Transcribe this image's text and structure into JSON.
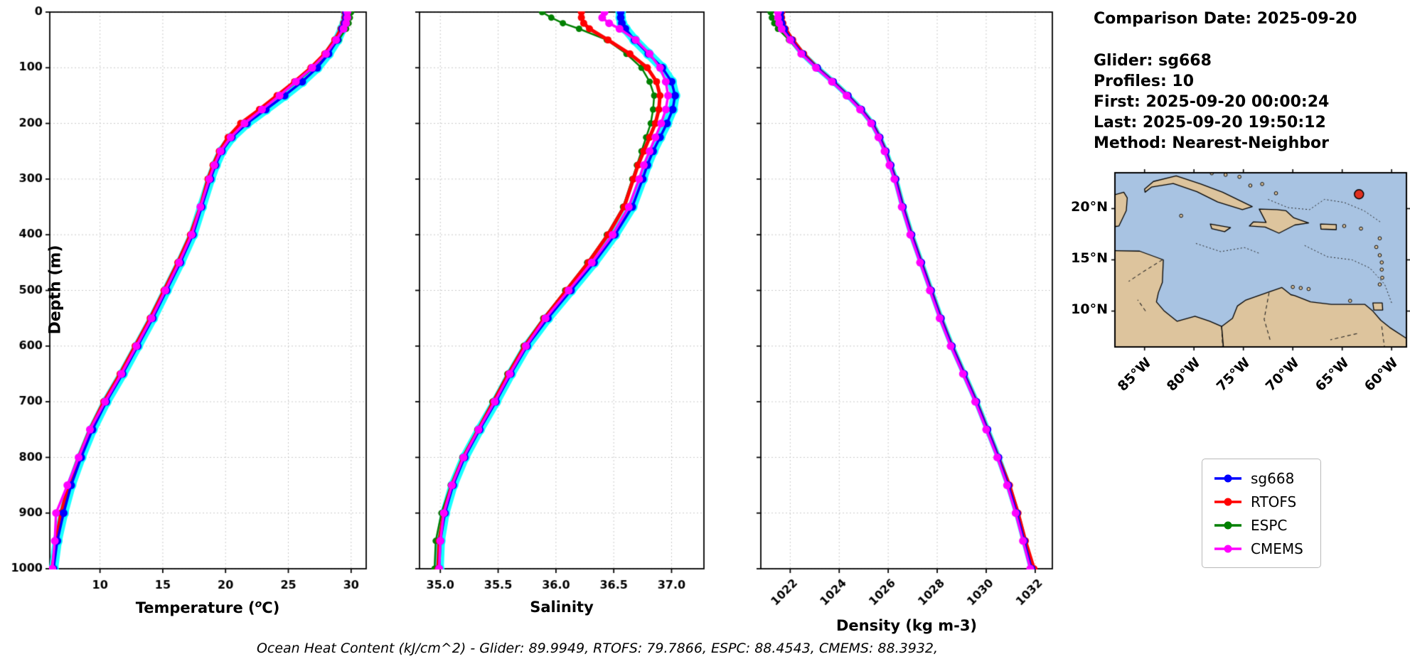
{
  "info": {
    "comparison_date": "Comparison Date: 2025-09-20",
    "glider": "Glider: sg668",
    "profiles": "Profiles: 10",
    "first": "First: 2025-09-20 00:00:24",
    "last": "Last: 2025-09-20 19:50:12",
    "method": "Method: Nearest-Neighbor"
  },
  "axes": {
    "ylabel": "Depth (m)",
    "temperature_label_prefix": "Temperature (",
    "temperature_label_sup": "o",
    "temperature_label_suffix": "C)",
    "salinity_label": "Salinity",
    "density_label": "Density (kg m-3)"
  },
  "legend": {
    "items": [
      {
        "label": "sg668",
        "color": "#0000ff"
      },
      {
        "label": "RTOFS",
        "color": "#ff0000"
      },
      {
        "label": "ESPC",
        "color": "#008000"
      },
      {
        "label": "CMEMS",
        "color": "#ff00ff"
      }
    ]
  },
  "footer": {
    "text": "Ocean Heat Content (kJ/cm^2) - Glider: 89.9949,  RTOFS: 79.7866,  ESPC: 88.4543,  CMEMS: 88.3932,"
  },
  "map": {
    "ocean_color": "#a8c3e2",
    "land_color": "#ddc49d",
    "marker_color": "#e03020",
    "lat_ticks": [
      {
        "label": "20°N"
      },
      {
        "label": "15°N"
      },
      {
        "label": "10°N"
      }
    ],
    "lon_ticks": [
      {
        "label": "85°W"
      },
      {
        "label": "80°W"
      },
      {
        "label": "75°W"
      },
      {
        "label": "70°W"
      },
      {
        "label": "65°W"
      },
      {
        "label": "60°W"
      }
    ],
    "marker_lonlat": [
      -63.3,
      21.4
    ],
    "extent": {
      "lon": [
        -88,
        -58.5
      ],
      "lat": [
        6.5,
        23.5
      ]
    }
  },
  "chart_data": [
    {
      "type": "line",
      "id": "temperature",
      "title": "",
      "xlabel": "Temperature (°C)",
      "ylabel": "Depth (m)",
      "xlim": [
        6,
        31.2
      ],
      "ylim": [
        1000,
        0
      ],
      "grid": "dashed",
      "legend_position": "outside-right",
      "xticks": [
        10,
        15,
        20,
        25,
        30
      ],
      "xtick_labels": [
        "10",
        "15",
        "20",
        "25",
        "30"
      ],
      "xtick_rotation": 0,
      "yticks": [
        0,
        100,
        200,
        300,
        400,
        500,
        600,
        700,
        800,
        900,
        1000
      ],
      "ytick_labels": [
        "0",
        "100",
        "200",
        "300",
        "400",
        "500",
        "600",
        "700",
        "800",
        "900",
        "1000"
      ],
      "show_ytick_labels": true,
      "depths": [
        0,
        10,
        20,
        30,
        50,
        75,
        100,
        125,
        150,
        175,
        200,
        225,
        250,
        275,
        300,
        350,
        400,
        450,
        500,
        550,
        600,
        650,
        700,
        750,
        800,
        850,
        900,
        950,
        1000
      ],
      "glider_spread": {
        "series": "sg668",
        "color": "#00ffff",
        "line_width": 13,
        "dot_radius": 7.5
      },
      "draw_order": [
        "ESPC",
        "RTOFS",
        "sg668",
        "CMEMS"
      ],
      "series": [
        {
          "name": "sg668",
          "color": "#0000ff",
          "line_width": 3.5,
          "marker_radius": 5.5,
          "values": [
            29.6,
            29.6,
            29.5,
            29.3,
            28.9,
            28.2,
            27.3,
            26.1,
            24.7,
            23.2,
            21.7,
            20.5,
            19.7,
            19.2,
            18.8,
            18.1,
            17.4,
            16.4,
            15.3,
            14.2,
            13.0,
            11.8,
            10.5,
            9.4,
            8.5,
            7.7,
            7.1,
            6.6,
            6.3
          ]
        },
        {
          "name": "RTOFS",
          "color": "#ff0000",
          "line_width": 5,
          "marker_radius": 5,
          "values": [
            29.5,
            29.5,
            29.4,
            29.2,
            28.7,
            27.9,
            26.8,
            25.5,
            24.1,
            22.7,
            21.2,
            20.2,
            19.5,
            19.0,
            18.6,
            18.0,
            17.2,
            16.2,
            15.1,
            14.0,
            12.8,
            11.6,
            10.3,
            9.2,
            8.3,
            7.5,
            6.9,
            6.5,
            6.2
          ]
        },
        {
          "name": "ESPC",
          "color": "#008000",
          "line_width": 2.5,
          "marker_radius": 4.5,
          "values": [
            30.0,
            29.9,
            29.8,
            29.6,
            29.0,
            28.1,
            27.0,
            25.7,
            24.3,
            22.8,
            21.4,
            20.3,
            19.6,
            19.1,
            18.7,
            18.0,
            17.3,
            16.3,
            15.2,
            14.1,
            12.9,
            11.7,
            10.4,
            9.3,
            8.4,
            7.6,
            7.0,
            6.5,
            6.2
          ]
        },
        {
          "name": "CMEMS",
          "color": "#ff00ff",
          "line_width": 3.5,
          "marker_radius": 5.5,
          "values": [
            29.7,
            29.7,
            29.6,
            29.4,
            28.8,
            28.0,
            26.9,
            25.6,
            24.3,
            22.9,
            21.5,
            20.4,
            19.6,
            19.1,
            18.7,
            18.0,
            17.3,
            16.3,
            15.2,
            14.1,
            12.9,
            11.7,
            10.4,
            9.2,
            8.3,
            7.4,
            6.5,
            6.4,
            6.2
          ]
        }
      ]
    },
    {
      "type": "line",
      "id": "salinity",
      "title": "",
      "xlabel": "Salinity",
      "ylabel": "Depth (m)",
      "xlim": [
        34.82,
        37.28
      ],
      "ylim": [
        1000,
        0
      ],
      "grid": "dashed",
      "xticks": [
        35.0,
        35.5,
        36.0,
        36.5,
        37.0
      ],
      "xtick_labels": [
        "35.0",
        "35.5",
        "36.0",
        "36.5",
        "37.0"
      ],
      "xtick_rotation": 0,
      "yticks": [
        0,
        100,
        200,
        300,
        400,
        500,
        600,
        700,
        800,
        900,
        1000
      ],
      "ytick_labels": [],
      "show_ytick_labels": false,
      "depths": [
        0,
        10,
        20,
        30,
        50,
        75,
        100,
        125,
        150,
        175,
        200,
        225,
        250,
        275,
        300,
        350,
        400,
        450,
        500,
        550,
        600,
        650,
        700,
        750,
        800,
        850,
        900,
        950,
        1000
      ],
      "glider_spread": {
        "series": "sg668",
        "color": "#00ffff",
        "line_width": 13,
        "dot_radius": 7.5
      },
      "draw_order": [
        "ESPC",
        "RTOFS",
        "sg668",
        "CMEMS"
      ],
      "series": [
        {
          "name": "sg668",
          "color": "#0000ff",
          "line_width": 3.5,
          "marker_radius": 5.5,
          "values": [
            36.56,
            36.56,
            36.57,
            36.6,
            36.68,
            36.8,
            36.92,
            37.0,
            37.03,
            37.01,
            36.96,
            36.9,
            36.84,
            36.79,
            36.75,
            36.66,
            36.51,
            36.33,
            36.13,
            35.93,
            35.75,
            35.61,
            35.48,
            35.34,
            35.21,
            35.11,
            35.04,
            35.0,
            34.99
          ]
        },
        {
          "name": "RTOFS",
          "color": "#ff0000",
          "line_width": 5,
          "marker_radius": 5,
          "values": [
            36.22,
            36.22,
            36.24,
            36.29,
            36.45,
            36.64,
            36.79,
            36.87,
            36.9,
            36.89,
            36.86,
            36.81,
            36.76,
            36.71,
            36.67,
            36.59,
            36.45,
            36.28,
            36.09,
            35.9,
            35.73,
            35.59,
            35.46,
            35.33,
            35.2,
            35.1,
            35.03,
            34.99,
            34.98
          ]
        },
        {
          "name": "ESPC",
          "color": "#008000",
          "line_width": 2.5,
          "marker_radius": 4.5,
          "values": [
            35.88,
            35.96,
            36.06,
            36.2,
            36.44,
            36.61,
            36.74,
            36.81,
            36.85,
            36.84,
            36.82,
            36.78,
            36.74,
            36.7,
            36.66,
            36.58,
            36.44,
            36.27,
            36.08,
            35.89,
            35.72,
            35.58,
            35.45,
            35.32,
            35.19,
            35.09,
            35.01,
            34.96,
            34.95
          ]
        },
        {
          "name": "CMEMS",
          "color": "#ff00ff",
          "line_width": 3.5,
          "marker_radius": 5.5,
          "values": [
            36.42,
            36.4,
            36.46,
            36.55,
            36.69,
            36.81,
            36.9,
            36.95,
            36.97,
            36.95,
            36.91,
            36.86,
            36.81,
            36.76,
            36.72,
            36.63,
            36.49,
            36.31,
            36.11,
            35.91,
            35.74,
            35.6,
            35.47,
            35.33,
            35.2,
            35.1,
            35.03,
            35.0,
            34.99
          ]
        }
      ]
    },
    {
      "type": "line",
      "id": "density",
      "title": "",
      "xlabel": "Density (kg m-3)",
      "ylabel": "Depth (m)",
      "xlim": [
        1020.8,
        1032.7
      ],
      "ylim": [
        1000,
        0
      ],
      "grid": "dashed",
      "xticks": [
        1022,
        1024,
        1026,
        1028,
        1030,
        1032
      ],
      "xtick_labels": [
        "1022",
        "1024",
        "1026",
        "1028",
        "1030",
        "1032"
      ],
      "xtick_rotation": 45,
      "yticks": [
        0,
        100,
        200,
        300,
        400,
        500,
        600,
        700,
        800,
        900,
        1000
      ],
      "ytick_labels": [],
      "show_ytick_labels": false,
      "depths": [
        0,
        10,
        20,
        30,
        50,
        75,
        100,
        125,
        150,
        175,
        200,
        225,
        250,
        275,
        300,
        350,
        400,
        450,
        500,
        550,
        600,
        650,
        700,
        750,
        800,
        850,
        900,
        950,
        1000
      ],
      "glider_spread": {
        "series": "sg668",
        "color": "#00ffff",
        "line_width": 8,
        "dot_radius": 5
      },
      "draw_order": [
        "ESPC",
        "RTOFS",
        "sg668",
        "CMEMS"
      ],
      "series": [
        {
          "name": "sg668",
          "color": "#0000ff",
          "line_width": 3.5,
          "marker_radius": 5.5,
          "values": [
            1021.6,
            1021.6,
            1021.65,
            1021.75,
            1022.05,
            1022.5,
            1023.1,
            1023.75,
            1024.35,
            1024.9,
            1025.35,
            1025.65,
            1025.9,
            1026.1,
            1026.3,
            1026.6,
            1026.95,
            1027.35,
            1027.75,
            1028.15,
            1028.6,
            1029.1,
            1029.6,
            1030.05,
            1030.5,
            1030.9,
            1031.25,
            1031.55,
            1031.85
          ]
        },
        {
          "name": "RTOFS",
          "color": "#ff0000",
          "line_width": 5,
          "marker_radius": 5,
          "values": [
            1021.65,
            1021.65,
            1021.7,
            1021.8,
            1022.1,
            1022.55,
            1023.1,
            1023.75,
            1024.35,
            1024.9,
            1025.35,
            1025.65,
            1025.9,
            1026.1,
            1026.3,
            1026.6,
            1026.95,
            1027.35,
            1027.75,
            1028.15,
            1028.6,
            1029.1,
            1029.6,
            1030.05,
            1030.5,
            1030.95,
            1031.3,
            1031.6,
            1031.95
          ]
        },
        {
          "name": "ESPC",
          "color": "#008000",
          "line_width": 2.5,
          "marker_radius": 4.5,
          "values": [
            1021.2,
            1021.25,
            1021.35,
            1021.5,
            1021.95,
            1022.45,
            1023.05,
            1023.7,
            1024.3,
            1024.85,
            1025.3,
            1025.6,
            1025.85,
            1026.05,
            1026.25,
            1026.55,
            1026.9,
            1027.3,
            1027.7,
            1028.1,
            1028.55,
            1029.05,
            1029.55,
            1030.0,
            1030.45,
            1030.85,
            1031.2,
            1031.5,
            1031.8
          ]
        },
        {
          "name": "CMEMS",
          "color": "#ff00ff",
          "line_width": 3.5,
          "marker_radius": 5.5,
          "values": [
            1021.5,
            1021.5,
            1021.55,
            1021.65,
            1022.0,
            1022.45,
            1023.05,
            1023.7,
            1024.3,
            1024.85,
            1025.3,
            1025.6,
            1025.85,
            1026.05,
            1026.25,
            1026.55,
            1026.9,
            1027.3,
            1027.7,
            1028.1,
            1028.55,
            1029.05,
            1029.55,
            1030.0,
            1030.45,
            1030.85,
            1031.2,
            1031.5,
            1031.8
          ]
        }
      ]
    }
  ]
}
